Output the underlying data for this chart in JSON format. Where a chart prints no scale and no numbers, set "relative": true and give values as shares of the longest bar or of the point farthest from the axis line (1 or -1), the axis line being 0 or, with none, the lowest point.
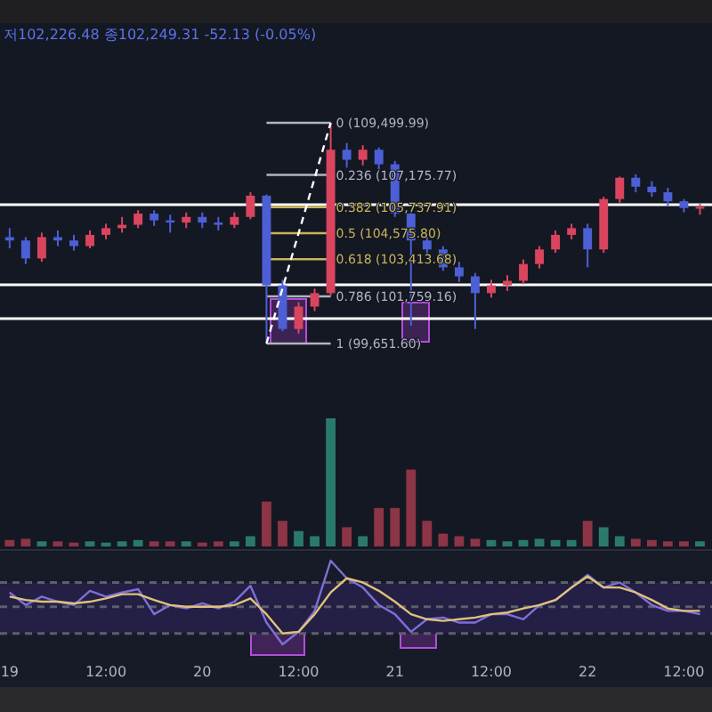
{
  "chart_data": [
    {
      "type": "candlestick",
      "subtitle": "저102,226.48 종102,249.31 -52.13 (-0.05%)",
      "categories": [
        null,
        null,
        null,
        null,
        null,
        null,
        null,
        null,
        null,
        null,
        null,
        null,
        null,
        null,
        null,
        null,
        null,
        null,
        null,
        null,
        null,
        null,
        null,
        null,
        null,
        null,
        null,
        null,
        null,
        null,
        null,
        null,
        null,
        null,
        null,
        null,
        null,
        null,
        null,
        null,
        null,
        null,
        null,
        null
      ],
      "ohlc": [
        [
          104400,
          104800,
          103900,
          104250
        ],
        [
          104250,
          104400,
          103200,
          103450
        ],
        [
          103450,
          104600,
          103300,
          104400
        ],
        [
          104400,
          104700,
          104000,
          104250
        ],
        [
          104250,
          104500,
          103800,
          104000
        ],
        [
          104000,
          104700,
          103900,
          104500
        ],
        [
          104500,
          105000,
          104300,
          104800
        ],
        [
          104800,
          105300,
          104600,
          104950
        ],
        [
          104950,
          105600,
          104800,
          105450
        ],
        [
          105450,
          105600,
          104900,
          105150
        ],
        [
          105150,
          105400,
          104600,
          105050
        ],
        [
          105050,
          105500,
          104800,
          105300
        ],
        [
          105300,
          105500,
          104800,
          105050
        ],
        [
          105050,
          105300,
          104700,
          104950
        ],
        [
          104950,
          105500,
          104800,
          105300
        ],
        [
          105300,
          106400,
          105200,
          106250
        ],
        [
          106250,
          106300,
          99651.6,
          102250
        ],
        [
          102250,
          102500,
          100200,
          100300
        ],
        [
          100300,
          101500,
          100100,
          101300
        ],
        [
          101300,
          102100,
          101100,
          101900
        ],
        [
          101900,
          109499.99,
          101800,
          108300
        ],
        [
          108300,
          108600,
          107500,
          107850
        ],
        [
          107850,
          108500,
          107600,
          108300
        ],
        [
          108300,
          108400,
          107400,
          107650
        ],
        [
          107650,
          107800,
          105300,
          105450
        ],
        [
          105450,
          105600,
          100450,
          104250
        ],
        [
          104250,
          104500,
          103600,
          103850
        ],
        [
          103850,
          104000,
          102900,
          103050
        ],
        [
          103050,
          103300,
          102400,
          102650
        ],
        [
          102650,
          102800,
          100300,
          101900
        ],
        [
          101900,
          102500,
          101700,
          102250
        ],
        [
          102250,
          102700,
          102000,
          102450
        ],
        [
          102450,
          103400,
          102300,
          103200
        ],
        [
          103200,
          104000,
          103000,
          103850
        ],
        [
          103850,
          104700,
          103700,
          104500
        ],
        [
          104500,
          105000,
          104300,
          104800
        ],
        [
          104800,
          105000,
          103050,
          103850
        ],
        [
          103850,
          106200,
          103700,
          106100
        ],
        [
          106100,
          107100,
          105900,
          107050
        ],
        [
          107050,
          107200,
          106400,
          106650
        ],
        [
          106650,
          106900,
          106200,
          106400
        ],
        [
          106400,
          106600,
          105800,
          106000
        ],
        [
          106000,
          106100,
          105500,
          105700
        ],
        [
          105700,
          105900,
          105400,
          105750
        ]
      ],
      "colors": [
        "#4c5fd5",
        "#4c5fd5",
        "#d9455f",
        "#4c5fd5",
        "#4c5fd5",
        "#d9455f",
        "#d9455f",
        "#d9455f",
        "#d9455f",
        "#4c5fd5",
        "#4c5fd5",
        "#d9455f",
        "#4c5fd5",
        "#4c5fd5",
        "#d9455f",
        "#d9455f",
        "#4c5fd5",
        "#4c5fd5",
        "#d9455f",
        "#d9455f",
        "#d9455f",
        "#4c5fd5",
        "#d9455f",
        "#4c5fd5",
        "#4c5fd5",
        "#4c5fd5",
        "#4c5fd5",
        "#4c5fd5",
        "#4c5fd5",
        "#4c5fd5",
        "#d9455f",
        "#d9455f",
        "#d9455f",
        "#d9455f",
        "#d9455f",
        "#d9455f",
        "#4c5fd5",
        "#d9455f",
        "#d9455f",
        "#4c5fd5",
        "#4c5fd5",
        "#4c5fd5",
        "#4c5fd5",
        "#d9455f"
      ],
      "ylim": [
        99651.6,
        109499.99
      ],
      "tick_labels": false,
      "series": [
        {
          "type": "line",
          "values": [
            null,
            null,
            null,
            null,
            null,
            null,
            null,
            null,
            null,
            null,
            null,
            null,
            null,
            null,
            null,
            null,
            99651.6,
            null,
            null,
            null,
            109499.99,
            null,
            null,
            null,
            null,
            null,
            null,
            null,
            null,
            null,
            null,
            null,
            null,
            null,
            null,
            null,
            null,
            null,
            null,
            null,
            null,
            null,
            null,
            null
          ],
          "color": "#ffffff",
          "line_style": "dashed"
        }
      ],
      "ref_lines": [
        {
          "axis": "y",
          "value": 105847,
          "color": "#ffffff"
        },
        {
          "axis": "y",
          "value": 102273,
          "color": "#ffffff"
        },
        {
          "axis": "y",
          "value": 100764,
          "color": "#ffffff"
        },
        {
          "axis": "y",
          "value": 109499.99,
          "label": "0 (109,499.99)",
          "color": "#b2b5be"
        },
        {
          "axis": "y",
          "value": 107175.77,
          "label": "0.236 (107,175.77)",
          "color": "#b2b5be"
        },
        {
          "axis": "y",
          "value": 105737.91,
          "label": "0.382 (105,737.91)",
          "color": "#c9b458"
        },
        {
          "axis": "y",
          "value": 104575.8,
          "label": "0.5 (104,575.80)",
          "color": "#c9b458"
        },
        {
          "axis": "y",
          "value": 103413.68,
          "label": "0.618 (103,413.68)",
          "color": "#c9b458"
        },
        {
          "axis": "y",
          "value": 101759.16,
          "label": "0.786 (101,759.16)",
          "color": "#b2b5be"
        },
        {
          "axis": "y",
          "value": 99651.6,
          "label": "1 (99,651.60)",
          "color": "#b2b5be"
        }
      ]
    },
    {
      "type": "bar",
      "relative": true,
      "tick_labels": false,
      "categories": [
        null,
        null,
        null,
        null,
        null,
        null,
        null,
        null,
        null,
        null,
        null,
        null,
        null,
        null,
        null,
        null,
        null,
        null,
        null,
        null,
        null,
        null,
        null,
        null,
        null,
        null,
        null,
        null,
        null,
        null,
        null,
        null,
        null,
        null,
        null,
        null,
        null,
        null,
        null,
        null,
        null,
        null,
        null,
        null
      ],
      "values": [
        0.05,
        0.06,
        0.04,
        0.04,
        0.03,
        0.04,
        0.03,
        0.04,
        0.05,
        0.04,
        0.04,
        0.04,
        0.03,
        0.04,
        0.04,
        0.08,
        0.35,
        0.2,
        0.12,
        0.08,
        1,
        0.15,
        0.08,
        0.3,
        0.3,
        0.6,
        0.2,
        0.1,
        0.08,
        0.06,
        0.05,
        0.04,
        0.05,
        0.06,
        0.05,
        0.05,
        0.2,
        0.15,
        0.08,
        0.06,
        0.05,
        0.04,
        0.04,
        0.04
      ],
      "colors": [
        "#8b3546",
        "#8b3546",
        "#2a7a6c",
        "#8b3546",
        "#8b3546",
        "#2a7a6c",
        "#2a7a6c",
        "#2a7a6c",
        "#2a7a6c",
        "#8b3546",
        "#8b3546",
        "#2a7a6c",
        "#8b3546",
        "#8b3546",
        "#2a7a6c",
        "#2a7a6c",
        "#8b3546",
        "#8b3546",
        "#2a7a6c",
        "#2a7a6c",
        "#2a7a6c",
        "#8b3546",
        "#2a7a6c",
        "#8b3546",
        "#8b3546",
        "#8b3546",
        "#8b3546",
        "#8b3546",
        "#8b3546",
        "#8b3546",
        "#2a7a6c",
        "#2a7a6c",
        "#2a7a6c",
        "#2a7a6c",
        "#2a7a6c",
        "#2a7a6c",
        "#8b3546",
        "#2a7a6c",
        "#2a7a6c",
        "#8b3546",
        "#8b3546",
        "#8b3546",
        "#8b3546",
        "#2a7a6c"
      ]
    },
    {
      "type": "line",
      "relative": true,
      "tick_labels": "x",
      "categories": [
        "19",
        null,
        null,
        null,
        null,
        null,
        "12:00",
        null,
        null,
        null,
        null,
        null,
        "20",
        null,
        null,
        null,
        null,
        null,
        "12:00",
        null,
        null,
        null,
        null,
        null,
        "21",
        null,
        null,
        null,
        null,
        null,
        "12:00",
        null,
        null,
        null,
        null,
        null,
        "22",
        null,
        null,
        null,
        null,
        null,
        "12:00",
        null
      ],
      "series": [
        {
          "color": "#7e6fd6",
          "values": [
            0.62,
            0.47,
            0.57,
            0.51,
            0.47,
            0.64,
            0.57,
            0.62,
            0.66,
            0.36,
            0.47,
            0.43,
            0.49,
            0.43,
            0.51,
            0.7,
            0.26,
            0,
            0.15,
            0.4,
            1,
            0.79,
            0.68,
            0.47,
            0.36,
            0.15,
            0.3,
            0.32,
            0.26,
            0.26,
            0.36,
            0.36,
            0.3,
            0.47,
            0.53,
            0.68,
            0.83,
            0.68,
            0.74,
            0.62,
            0.47,
            0.4,
            0.4,
            0.36
          ]
        },
        {
          "color": "#e0c27a",
          "values": [
            0.57,
            0.53,
            0.51,
            0.51,
            0.49,
            0.51,
            0.55,
            0.6,
            0.6,
            0.53,
            0.47,
            0.45,
            0.45,
            0.45,
            0.47,
            0.55,
            0.36,
            0.13,
            0.15,
            0.36,
            0.62,
            0.79,
            0.74,
            0.64,
            0.51,
            0.36,
            0.3,
            0.28,
            0.3,
            0.32,
            0.36,
            0.38,
            0.43,
            0.47,
            0.53,
            0.68,
            0.81,
            0.68,
            0.68,
            0.62,
            0.53,
            0.43,
            0.4,
            0.4
          ]
        }
      ],
      "bands": [
        {
          "axis": "y",
          "from": 0.13,
          "to": 0.74,
          "color": "#231f45"
        }
      ],
      "ref_lines": [
        {
          "axis": "y",
          "value": 0.74,
          "color": "#5d5f6b",
          "line_style": "dashed"
        },
        {
          "axis": "y",
          "value": 0.45,
          "color": "#5d5f6b",
          "line_style": "dashed"
        },
        {
          "axis": "y",
          "value": 0.13,
          "color": "#5d5f6b",
          "line_style": "dashed"
        }
      ]
    }
  ]
}
